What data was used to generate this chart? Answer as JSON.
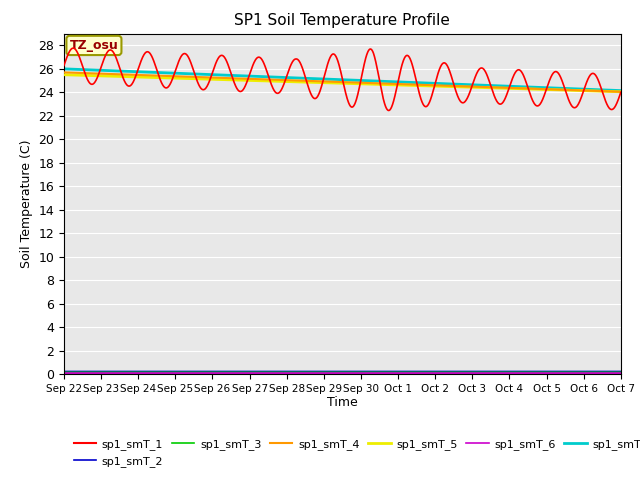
{
  "title": "SP1 Soil Temperature Profile",
  "xlabel": "Time",
  "ylabel": "Soil Temperature (C)",
  "ylim": [
    0,
    29
  ],
  "yticks": [
    0,
    2,
    4,
    6,
    8,
    10,
    12,
    14,
    16,
    18,
    20,
    22,
    24,
    26,
    28
  ],
  "total_hours": 360,
  "bg_color": "#e8e8e8",
  "annotation_text": "TZ_osu",
  "annotation_bg": "#ffffcc",
  "annotation_border": "#999900",
  "annotation_text_color": "#990000",
  "series": {
    "sp1_smT_1": {
      "color": "#ff0000",
      "lw": 1.2
    },
    "sp1_smT_2": {
      "color": "#0000cc",
      "lw": 1.2,
      "value": 0.25
    },
    "sp1_smT_3": {
      "color": "#00cc00",
      "lw": 1.2,
      "value": 0.18
    },
    "sp1_smT_4": {
      "color": "#ff9900",
      "lw": 1.5,
      "start": 25.7,
      "end": 24.05
    },
    "sp1_smT_5": {
      "color": "#eeee00",
      "lw": 2.0,
      "start": 25.5,
      "end": 24.05
    },
    "sp1_smT_6": {
      "color": "#cc00cc",
      "lw": 1.5,
      "value": 0.1
    },
    "sp1_smT_7": {
      "color": "#00cccc",
      "lw": 2.0,
      "start": 26.0,
      "end": 24.15
    }
  },
  "xtick_labels": [
    "Sep 22",
    "Sep 23",
    "Sep 24",
    "Sep 25",
    "Sep 26",
    "Sep 27",
    "Sep 28",
    "Sep 29",
    "Sep 30",
    "Oct 1",
    "Oct 2",
    "Oct 3",
    "Oct 4",
    "Oct 5",
    "Oct 6",
    "Oct 7"
  ],
  "xtick_positions": [
    0,
    24,
    48,
    72,
    96,
    120,
    144,
    168,
    192,
    216,
    240,
    264,
    288,
    312,
    336,
    360
  ]
}
